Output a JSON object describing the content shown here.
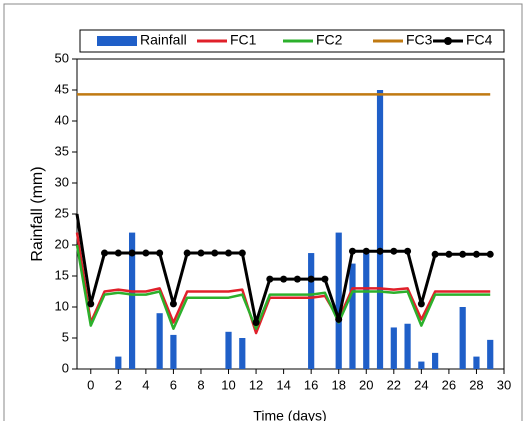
{
  "chart_data": {
    "type": "combo",
    "x_title": "Time (days)",
    "y_title": "Rainfall (mm)",
    "x": [
      -1,
      0,
      1,
      2,
      3,
      4,
      5,
      6,
      7,
      8,
      9,
      10,
      11,
      12,
      13,
      14,
      15,
      16,
      17,
      18,
      19,
      20,
      21,
      22,
      23,
      24,
      25,
      26,
      27,
      28,
      29
    ],
    "xlim": [
      -1,
      30
    ],
    "xticks": [
      0,
      2,
      4,
      6,
      8,
      10,
      12,
      14,
      16,
      18,
      20,
      22,
      24,
      26,
      28,
      30
    ],
    "ylim": [
      0,
      50
    ],
    "yticks": [
      0,
      5,
      10,
      15,
      20,
      25,
      30,
      35,
      40,
      45,
      50
    ],
    "grid": false,
    "legend": "top",
    "series": [
      {
        "name": "Rainfall",
        "type": "bar",
        "color": "#1f5fc8",
        "values": [
          null,
          null,
          null,
          2,
          22,
          null,
          9,
          5.5,
          null,
          null,
          null,
          6,
          5,
          null,
          null,
          null,
          null,
          18.7,
          null,
          22,
          17,
          19,
          45,
          6.7,
          7.3,
          1.2,
          2.6,
          null,
          10,
          2,
          4.7
        ]
      },
      {
        "name": "FC1",
        "type": "line",
        "color": "#e0202a",
        "values": [
          22,
          7.5,
          12.5,
          12.8,
          12.5,
          12.5,
          13,
          7.5,
          12.5,
          12.5,
          12.5,
          12.5,
          12.8,
          5.8,
          11.5,
          11.5,
          11.5,
          11.5,
          11.8,
          8,
          13,
          13,
          13,
          12.8,
          13,
          8,
          12.5,
          12.5,
          12.5,
          12.5,
          12.5
        ]
      },
      {
        "name": "FC2",
        "type": "line",
        "color": "#2cb02c",
        "values": [
          20,
          7,
          12,
          12.3,
          12,
          12,
          12.5,
          6.5,
          11.5,
          11.5,
          11.5,
          11.5,
          12,
          6.5,
          12,
          12,
          12,
          12,
          12.3,
          7.5,
          12.5,
          12.5,
          12.5,
          12.3,
          12.5,
          7,
          12,
          12,
          12,
          12,
          12
        ]
      },
      {
        "name": "FC3",
        "type": "line",
        "color": "#c07a12",
        "values": [
          44.3,
          44.3,
          44.3,
          44.3,
          44.3,
          44.3,
          44.3,
          44.3,
          44.3,
          44.3,
          44.3,
          44.3,
          44.3,
          44.3,
          44.3,
          44.3,
          44.3,
          44.3,
          44.3,
          44.3,
          44.3,
          44.3,
          44.3,
          44.3,
          44.3,
          44.3,
          44.3,
          44.3,
          44.3,
          44.3,
          44.3
        ]
      },
      {
        "name": "FC4",
        "type": "line",
        "color": "#000000",
        "marker": "circle",
        "values": [
          25,
          10.5,
          18.7,
          18.7,
          18.7,
          18.7,
          18.7,
          10.5,
          18.7,
          18.7,
          18.7,
          18.7,
          18.7,
          7.5,
          14.5,
          14.5,
          14.5,
          14.5,
          14.5,
          8,
          19,
          19,
          19,
          19,
          19,
          10.5,
          18.5,
          18.5,
          18.5,
          18.5,
          18.5
        ]
      }
    ]
  }
}
